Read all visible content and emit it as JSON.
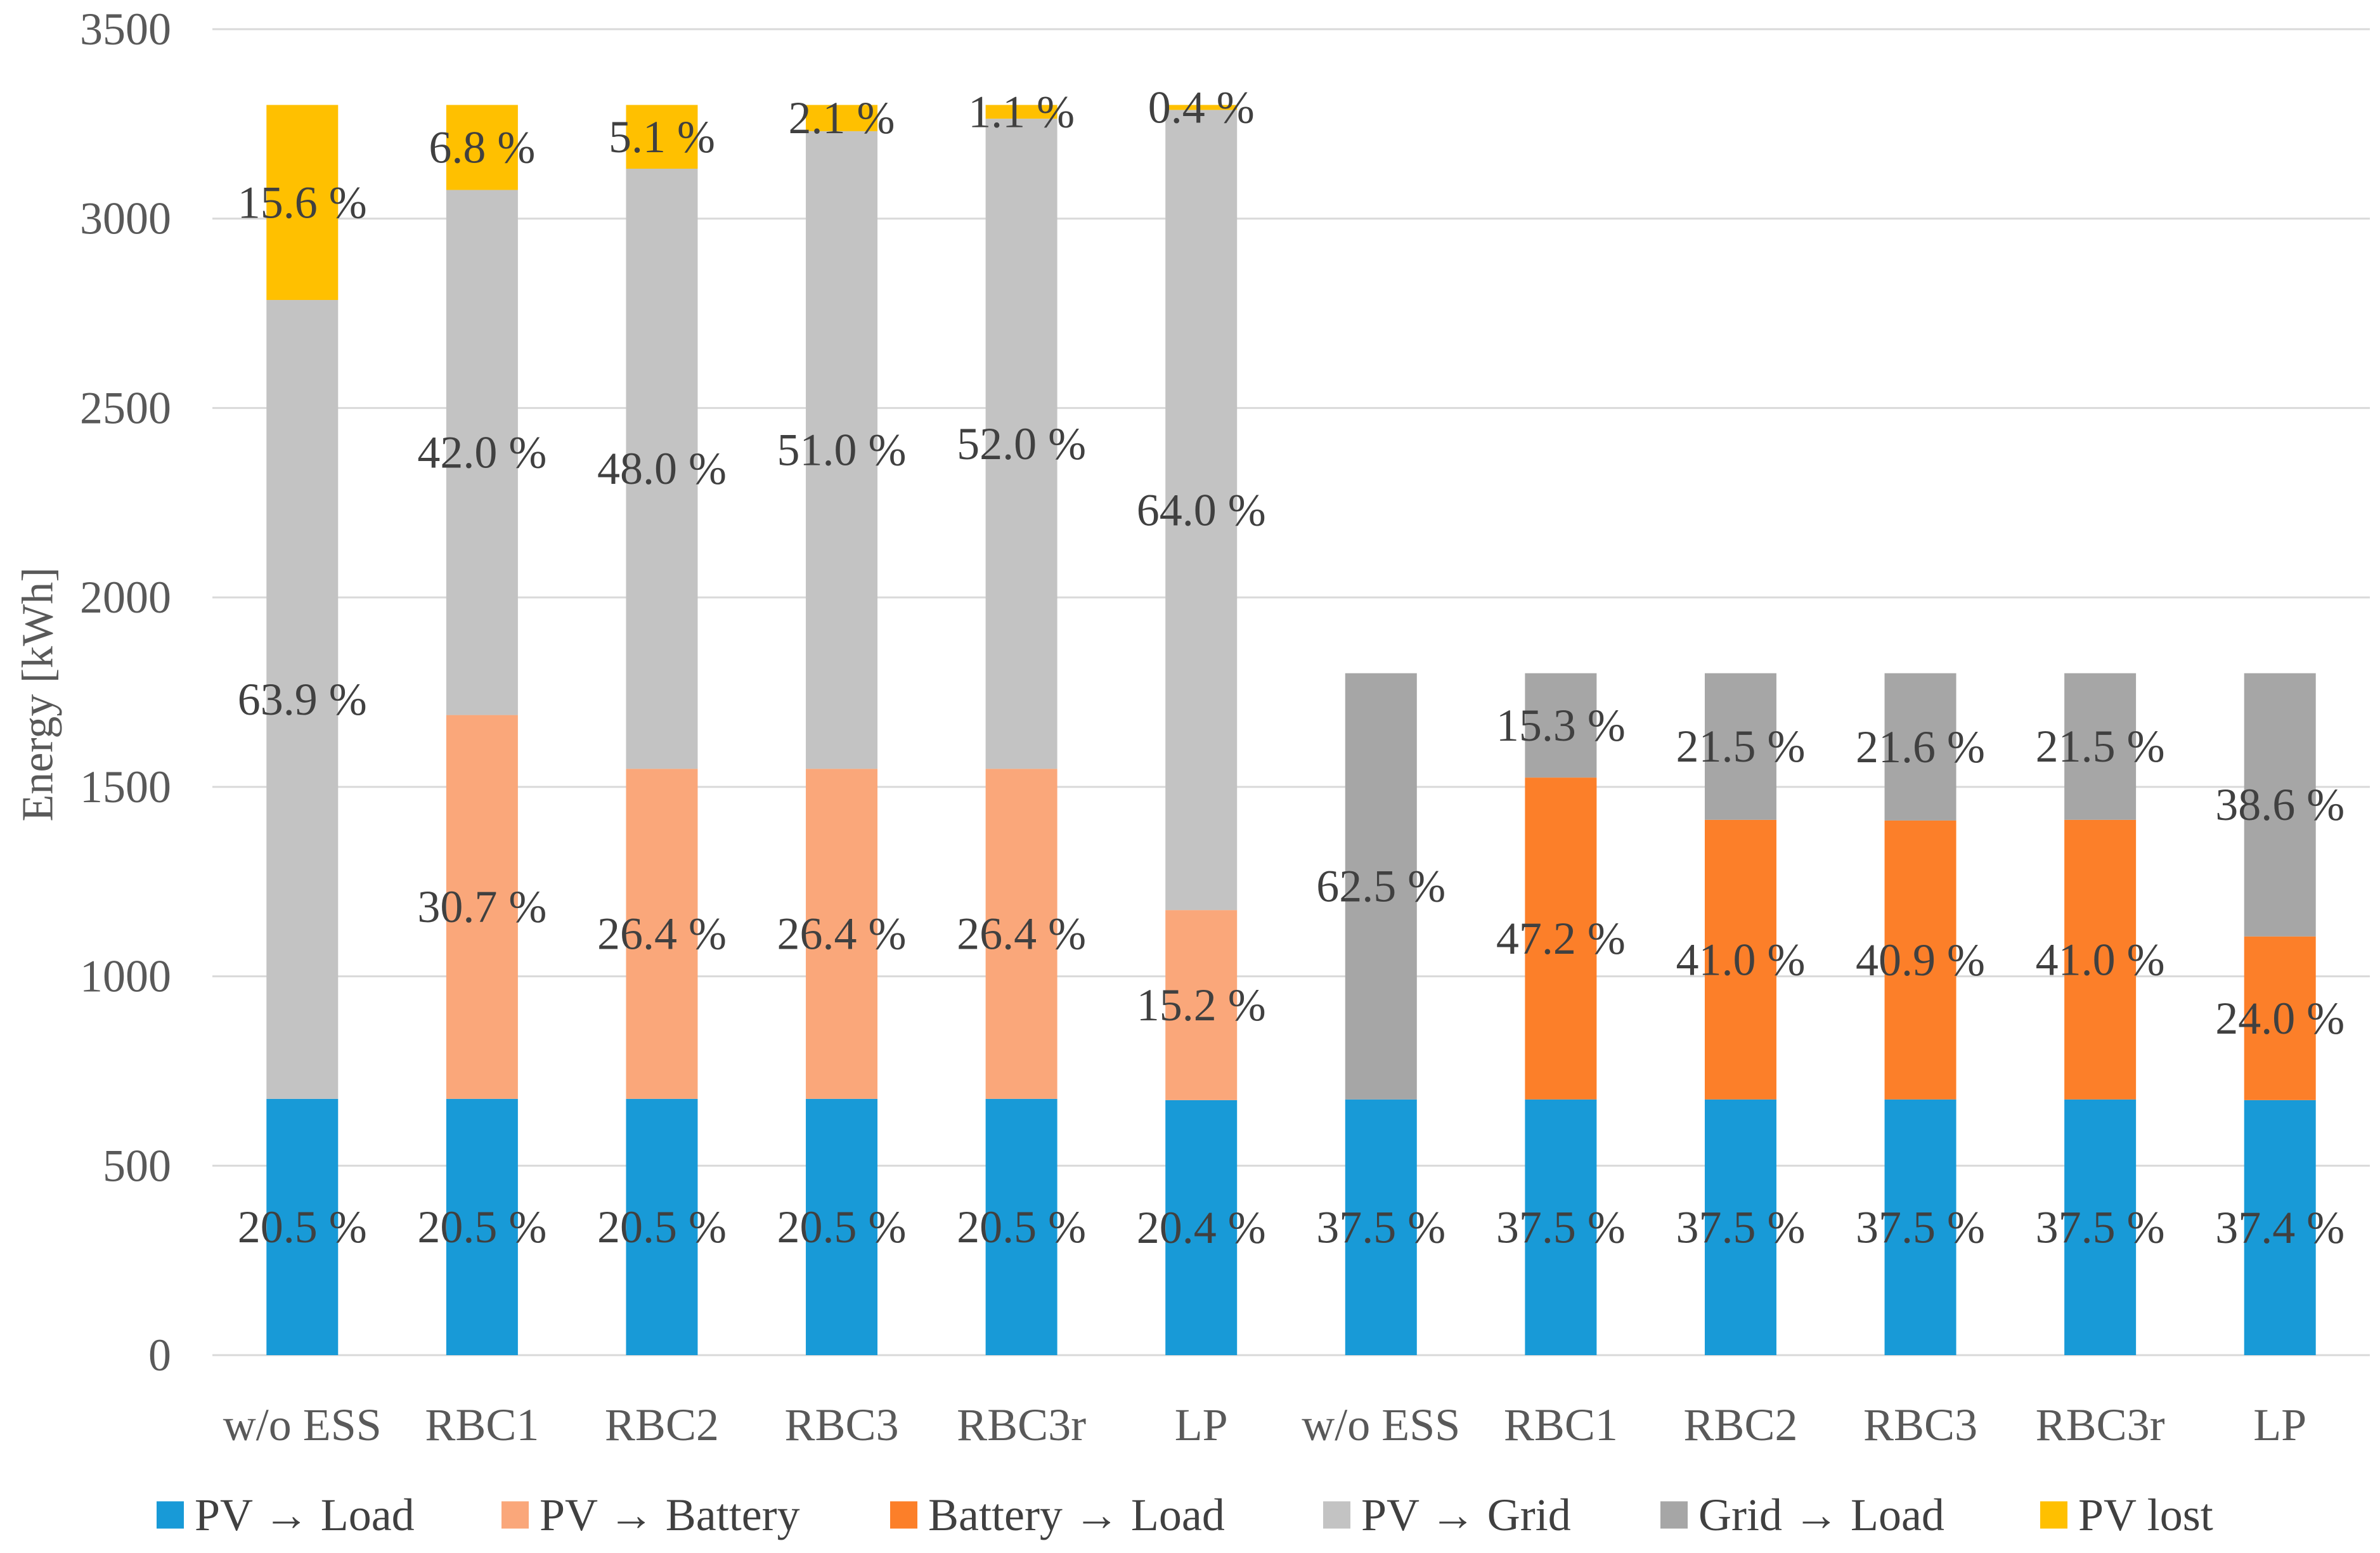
{
  "chart_data": {
    "type": "bar",
    "stacked": true,
    "ylabel": "Energy [kWh]",
    "ylim": [
      0,
      3500
    ],
    "yticks": [
      0,
      500,
      1000,
      1500,
      2000,
      2500,
      3000,
      3500
    ],
    "grid": true,
    "legend": "bottom",
    "categories": [
      "w/o ESS",
      "RBC1",
      "RBC2",
      "RBC3",
      "RBC3r",
      "LP",
      "w/o ESS",
      "RBC1",
      "RBC2",
      "RBC3",
      "RBC3r",
      "LP"
    ],
    "series": [
      {
        "name": "PV → Load",
        "color": "#189AD7",
        "values": [
          676.5,
          676.5,
          676.5,
          676.5,
          676.5,
          673.2,
          675,
          675,
          675,
          675,
          675,
          673.2
        ],
        "labels": [
          "20.5 %",
          "20.5 %",
          "20.5 %",
          "20.5 %",
          "20.5 %",
          "20.4 %",
          "37.5 %",
          "37.5 %",
          "37.5 %",
          "37.5 %",
          "37.5 %",
          "37.4 %"
        ]
      },
      {
        "name": "PV → Battery",
        "color": "#FAA77A",
        "values": [
          0,
          1013.1,
          871.2,
          871.2,
          871.2,
          501.6,
          0,
          0,
          0,
          0,
          0,
          0
        ],
        "labels": [
          null,
          "30.7 %",
          "26.4 %",
          "26.4 %",
          "26.4 %",
          "15.2 %",
          null,
          null,
          null,
          null,
          null,
          null
        ]
      },
      {
        "name": "Battery → Load",
        "color": "#FC7F29",
        "values": [
          0,
          0,
          0,
          0,
          0,
          0,
          0,
          849.6,
          738,
          736.2,
          738,
          432
        ],
        "labels": [
          null,
          null,
          null,
          null,
          null,
          null,
          null,
          "47.2 %",
          "41.0 %",
          "40.9 %",
          "41.0 %",
          "24.0 %"
        ]
      },
      {
        "name": "PV → Grid",
        "color": "#C3C3C3",
        "values": [
          2108.7,
          1386,
          1584,
          1683,
          1716,
          2112,
          0,
          0,
          0,
          0,
          0,
          0
        ],
        "labels": [
          "63.9 %",
          "42.0 %",
          "48.0 %",
          "51.0 %",
          "52.0 %",
          "64.0 %",
          null,
          null,
          null,
          null,
          null,
          null
        ]
      },
      {
        "name": "Grid → Load",
        "color": "#A6A6A6",
        "values": [
          0,
          0,
          0,
          0,
          0,
          0,
          1125,
          275.4,
          387,
          388.8,
          387,
          694.8
        ],
        "labels": [
          null,
          null,
          null,
          null,
          null,
          null,
          "62.5 %",
          "15.3 %",
          "21.5 %",
          "21.6 %",
          "21.5 %",
          "38.6 %"
        ]
      },
      {
        "name": "PV lost",
        "color": "#FFC000",
        "values": [
          514.8,
          224.4,
          168.3,
          69.3,
          36.3,
          13.2,
          0,
          0,
          0,
          0,
          0,
          0
        ],
        "labels": [
          "15.6 %",
          "6.8 %",
          "5.1 %",
          "2.1 %",
          "1.1 %",
          "0.4 %",
          null,
          null,
          null,
          null,
          null,
          null
        ]
      }
    ]
  }
}
